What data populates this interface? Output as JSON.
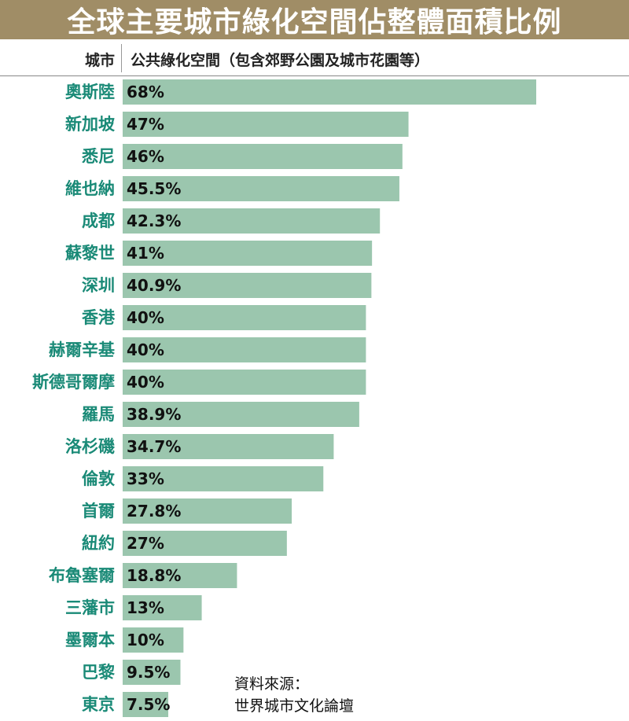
{
  "title": "全球主要城市綠化空間佔整體面積比例",
  "header": {
    "city_label": "城市",
    "value_label": "公共綠化空間（包含郊野公園及城市花園等）"
  },
  "source": {
    "line1": "資料來源：",
    "line2": "世界城市文化論壇"
  },
  "colors": {
    "title_bg": "#a08d66",
    "bar": "#9bc6ae",
    "city_text": "#1a8a77",
    "value_text": "#111111"
  },
  "chart_data": {
    "type": "bar",
    "orientation": "horizontal",
    "categories": [
      "奧斯陸",
      "新加坡",
      "悉尼",
      "維也納",
      "成都",
      "蘇黎世",
      "深圳",
      "香港",
      "赫爾辛基",
      "斯德哥爾摩",
      "羅馬",
      "洛杉磯",
      "倫敦",
      "首爾",
      "紐約",
      "布魯塞爾",
      "三藩市",
      "墨爾本",
      "巴黎",
      "東京"
    ],
    "values": [
      68,
      47,
      46,
      45.5,
      42.3,
      41,
      40.9,
      40,
      40,
      40,
      38.9,
      34.7,
      33,
      27.8,
      27,
      18.8,
      13,
      10,
      9.5,
      7.5
    ],
    "value_labels": [
      "68%",
      "47%",
      "46%",
      "45.5%",
      "42.3%",
      "41%",
      "40.9%",
      "40%",
      "40%",
      "40%",
      "38.9%",
      "34.7%",
      "33%",
      "27.8%",
      "27%",
      "18.8%",
      "13%",
      "10%",
      "9.5%",
      "7.5%"
    ],
    "xlim": [
      0,
      68
    ],
    "grid": false,
    "legend": "none"
  }
}
